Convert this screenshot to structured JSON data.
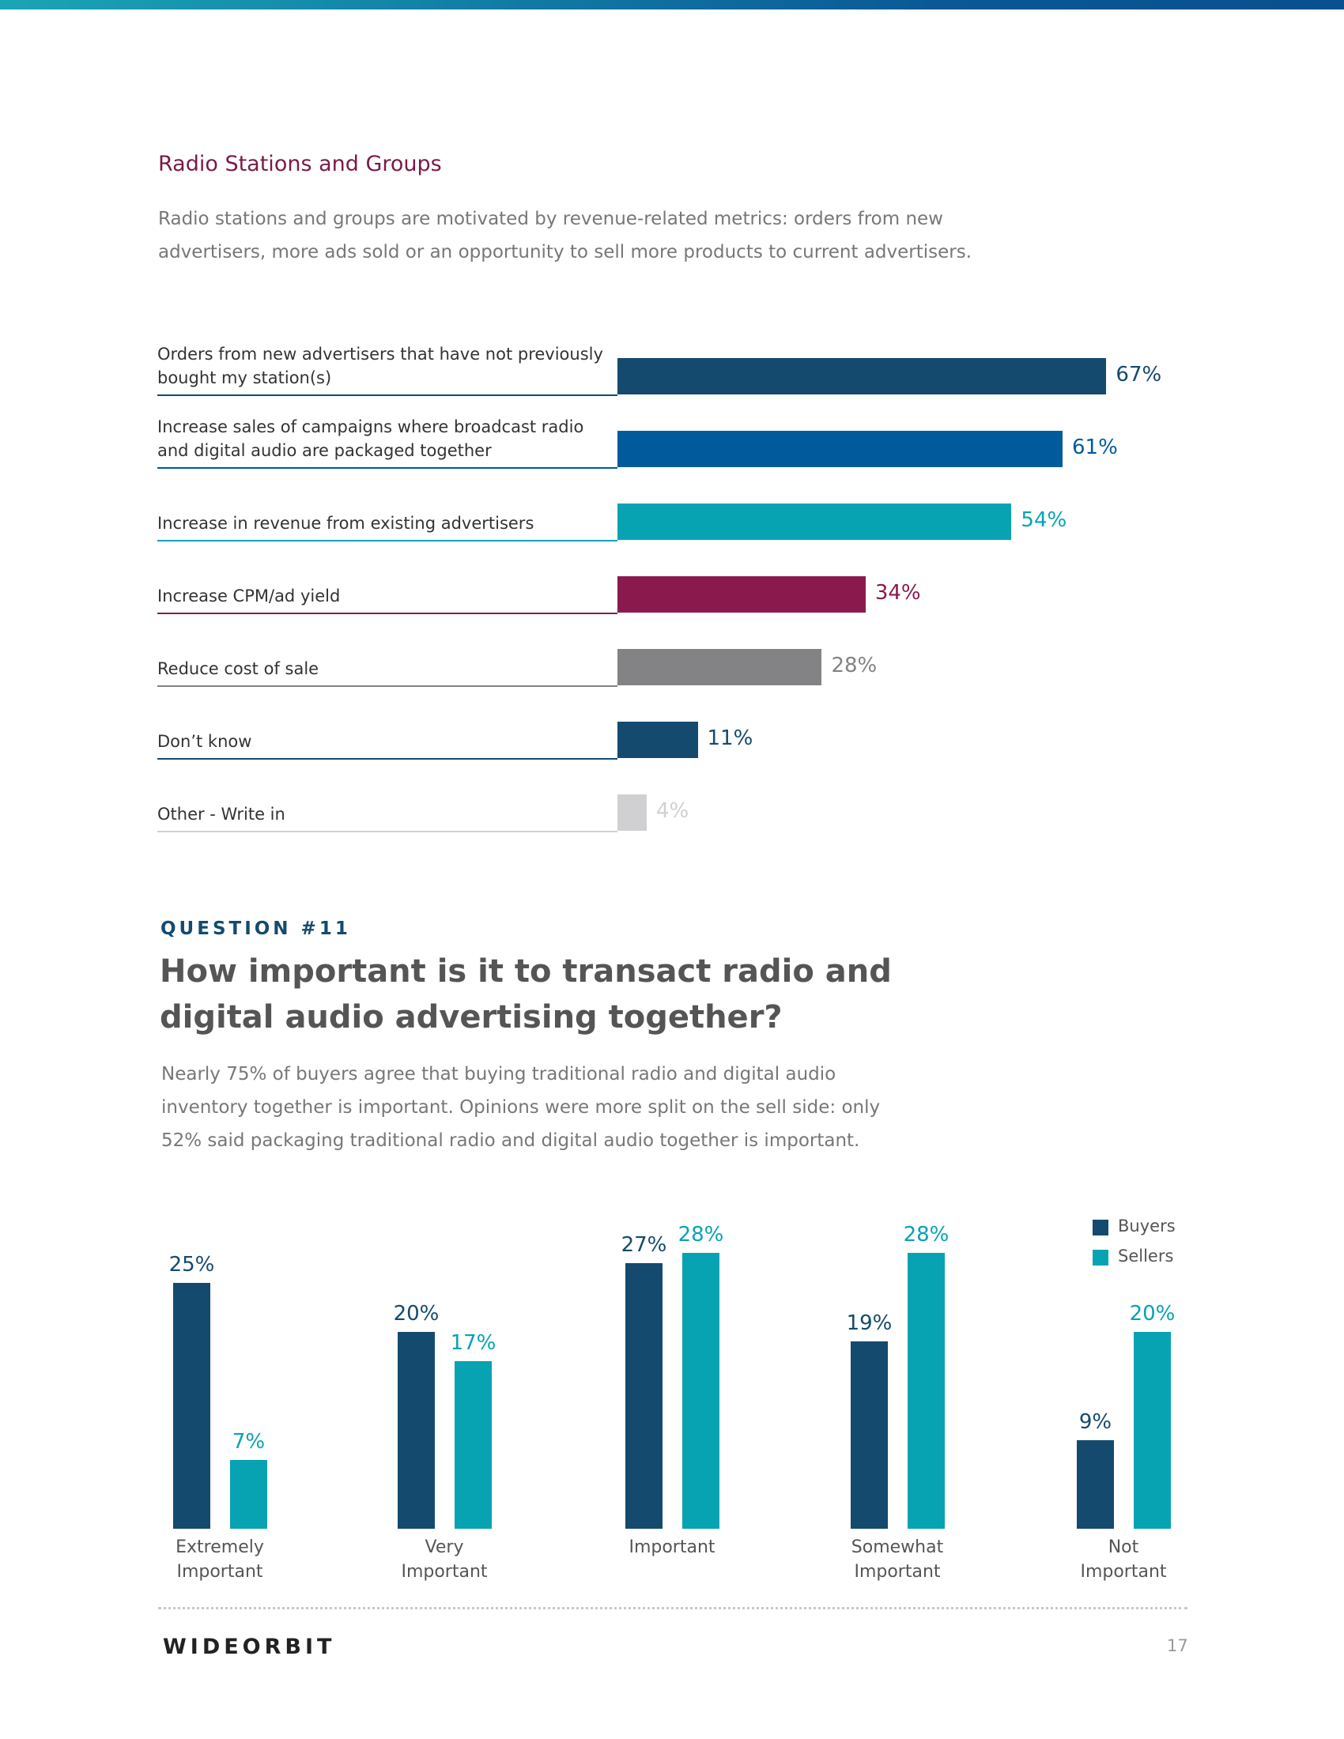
{
  "page": {
    "title": "Radio Stations and Groups",
    "intro": "Radio stations and groups are motivated by revenue-related metrics: orders from new advertisers, more ads sold or an opportunity to sell more products to current advertisers.",
    "question": "QUESTION #11",
    "heading": "How important is it to transact radio and digital audio advertising together?",
    "text": "Nearly 75% of buyers agree that buying traditional radio and digital audio inventory together is important. Opinions were more split on the sell side: only 52% said packaging traditional radio and digital audio together is important.",
    "footer": {
      "logo": "WIDEORBIT",
      "page_number": "17"
    }
  },
  "chart_data": [
    {
      "type": "hbar",
      "categories": [
        "Orders from new advertisers that have not previously bought my station(s)",
        "Increase sales of campaigns where broadcast radio and digital audio are packaged together",
        "Increase in revenue from existing advertisers",
        "Increase CPM/ad yield",
        "Reduce cost of sale",
        "Don’t know",
        "Other - Write in"
      ],
      "values": [
        67,
        61,
        54,
        34,
        28,
        11,
        4
      ],
      "value_labels": [
        "67%",
        "61%",
        "54%",
        "34%",
        "28%",
        "11%",
        "4%"
      ],
      "colors": [
        "#144a6e",
        "#005a9c",
        "#07a3b3",
        "#8a1a4d",
        "#838386",
        "#144a6e",
        "#d0d0d2"
      ]
    },
    {
      "type": "grouped_bar",
      "categories": [
        "Extremely Important",
        "Very Important",
        "Important",
        "Somewhat Important",
        "Not Important"
      ],
      "series": [
        {
          "name": "Buyers",
          "color": "#144a6e",
          "values": [
            25,
            20,
            27,
            19,
            9
          ],
          "value_labels": [
            "25%",
            "20%",
            "27%",
            "19%",
            "9%"
          ]
        },
        {
          "name": "Sellers",
          "color": "#07a3b3",
          "values": [
            7,
            17,
            28,
            28,
            20
          ],
          "value_labels": [
            "7%",
            "17%",
            "28%",
            "28%",
            "20%"
          ]
        }
      ],
      "legend": "top-right"
    }
  ]
}
